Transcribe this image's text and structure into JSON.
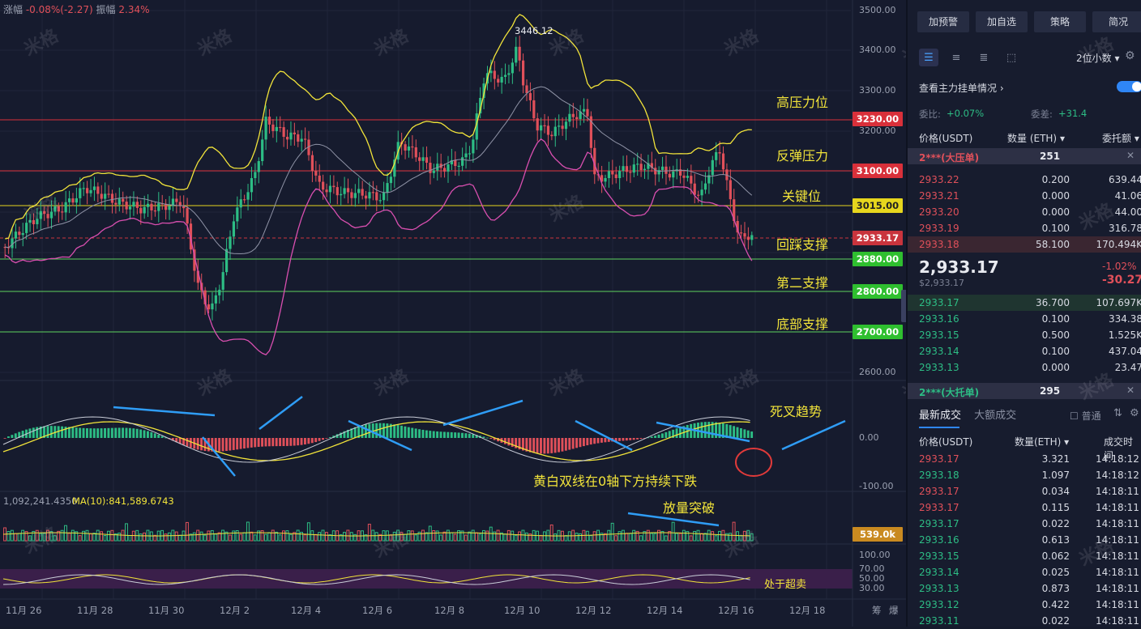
{
  "chart": {
    "change_label": "涨幅",
    "change_value": "-0.08%(-2.27)",
    "amplitude_label": "振幅",
    "amplitude_value": "2.34%",
    "high_label": "3446.12",
    "y_ticks": [
      "3500.00",
      "3400.00",
      "3300.00",
      "3200.00",
      "2600.00"
    ],
    "levels": [
      {
        "value": "3230.00",
        "label": "高压力位",
        "color": "#d9303a",
        "line": "#d9303a"
      },
      {
        "value": "3100.00",
        "label": "反弹压力",
        "color": "#d9303a",
        "line": "#d9303a"
      },
      {
        "value": "3015.00",
        "label": "关键位",
        "color": "#e7d61d",
        "line": "#e7d61d"
      },
      {
        "value": "2933.17",
        "label": "回踩支撑",
        "color": "#c9343d",
        "line": "#c9343d"
      },
      {
        "value": "2880.00",
        "label": "",
        "color": "#2fbf2f",
        "line": "#5fd35f"
      },
      {
        "value": "2800.00",
        "label": "第二支撑",
        "color": "#2fbf2f",
        "line": "#5fd35f"
      },
      {
        "value": "2700.00",
        "label": "底部支撑",
        "color": "#2fbf2f",
        "line": "#5fd35f"
      }
    ],
    "macd_ticks": [
      "0.00",
      "-100.00"
    ],
    "macd_annotations": {
      "death_cross": "死叉趋势",
      "lines_below": "黄白双线在0轴下方持续下跌"
    },
    "volume_info": "1,092,241.4350",
    "volume_ma_label": "MA(10):841,589.6743",
    "volume_annotation": "放量突破",
    "volume_box": "539.0k",
    "rsi_ticks": [
      "100.00",
      "70.00",
      "50.00",
      "30.00"
    ],
    "rsi_annotation": "处于超卖",
    "x_labels": [
      "11月 26",
      "11月 28",
      "11月 30",
      "12月 2",
      "12月 4",
      "12月 6",
      "12月 8",
      "12月 10",
      "12月 12",
      "12月 14",
      "12月 16",
      "12月 18"
    ],
    "corner_labels": [
      "筹",
      "爆"
    ],
    "watermark": "米格"
  },
  "panel": {
    "buttons": [
      "加预警",
      "加自选",
      "策略",
      "简况"
    ],
    "decimal_label": "2位小数",
    "watch_label": "查看主力挂单情况",
    "ratio_label": "委比:",
    "ratio_value": "+0.07%",
    "diff_label": "委差:",
    "diff_value": "+31.4",
    "col_price": "价格(USDT)",
    "col_qty": "数量 (ETH)",
    "col_total": "委托额",
    "ask_big_label": "2***(大压单)",
    "ask_big_value": "251",
    "asks": [
      {
        "price": "2933.22",
        "qty": "0.200",
        "total": "639.44"
      },
      {
        "price": "2933.21",
        "qty": "0.000",
        "total": "41.06"
      },
      {
        "price": "2933.20",
        "qty": "0.000",
        "total": "44.00"
      },
      {
        "price": "2933.19",
        "qty": "0.100",
        "total": "316.78"
      },
      {
        "price": "2933.18",
        "qty": "58.100",
        "total": "170.494K"
      }
    ],
    "last_price": "2,933.17",
    "last_usd": "$2,933.17",
    "last_pct": "-1.02%",
    "last_chg": "-30.27",
    "bids": [
      {
        "price": "2933.17",
        "qty": "36.700",
        "total": "107.697K"
      },
      {
        "price": "2933.16",
        "qty": "0.100",
        "total": "334.38"
      },
      {
        "price": "2933.15",
        "qty": "0.500",
        "total": "1.525K"
      },
      {
        "price": "2933.14",
        "qty": "0.100",
        "total": "437.04"
      },
      {
        "price": "2933.13",
        "qty": "0.000",
        "total": "23.47"
      }
    ],
    "bid_big_label": "2***(大托单)",
    "bid_big_value": "295",
    "tab_latest": "最新成交",
    "tab_large": "大额成交",
    "normal_label": "普通",
    "trade_col_price": "价格(USDT)",
    "trade_col_qty": "数量(ETH)",
    "trade_col_time": "成交时间",
    "trades": [
      {
        "price": "2933.17",
        "side": "sell",
        "qty": "3.321",
        "time": "14:18:12"
      },
      {
        "price": "2933.18",
        "side": "buy",
        "qty": "1.097",
        "time": "14:18:12"
      },
      {
        "price": "2933.17",
        "side": "sell",
        "qty": "0.034",
        "time": "14:18:11"
      },
      {
        "price": "2933.17",
        "side": "sell",
        "qty": "0.115",
        "time": "14:18:11"
      },
      {
        "price": "2933.17",
        "side": "buy",
        "qty": "0.022",
        "time": "14:18:11"
      },
      {
        "price": "2933.16",
        "side": "buy",
        "qty": "0.613",
        "time": "14:18:11"
      },
      {
        "price": "2933.15",
        "side": "buy",
        "qty": "0.062",
        "time": "14:18:11"
      },
      {
        "price": "2933.14",
        "side": "buy",
        "qty": "0.025",
        "time": "14:18:11"
      },
      {
        "price": "2933.13",
        "side": "buy",
        "qty": "0.873",
        "time": "14:18:11"
      },
      {
        "price": "2933.12",
        "side": "buy",
        "qty": "0.422",
        "time": "14:18:11"
      },
      {
        "price": "2933.11",
        "side": "buy",
        "qty": "0.022",
        "time": "14:18:11"
      }
    ]
  }
}
